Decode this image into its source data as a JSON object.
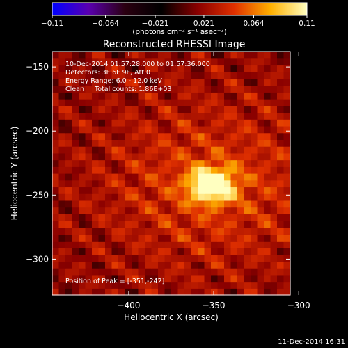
{
  "colorbar": {
    "ticks": [
      -0.11,
      -0.064,
      -0.021,
      0.021,
      0.064,
      0.11
    ],
    "tick_labels": [
      "−0.11",
      "−0.064",
      "−0.021",
      "0.021",
      "0.064",
      "0.11"
    ],
    "unit_label": "(photons cm⁻² s⁻¹ asec⁻²)",
    "range": [
      -0.11,
      0.11
    ],
    "colors": [
      "#0000ff",
      "#5a00b0",
      "#2a0010",
      "#000000",
      "#8a0000",
      "#e03000",
      "#ffb000",
      "#ffffc0"
    ]
  },
  "chart_data": {
    "type": "heatmap",
    "title": "Reconstructed RHESSI Image",
    "xlabel": "Heliocentric X (arcsec)",
    "ylabel": "Heliocentric Y (arcsec)",
    "xlim": [
      -445,
      -305
    ],
    "ylim": [
      -328,
      -138
    ],
    "x_ticks": [
      -400,
      -350,
      -300
    ],
    "x_tick_labels": [
      "−400",
      "−350",
      "−300"
    ],
    "y_ticks": [
      -150,
      -200,
      -250,
      -300
    ],
    "y_tick_labels": [
      "−150",
      "−200",
      "−250",
      "−300"
    ],
    "peak": {
      "x": -351,
      "y": -242,
      "value": 0.11
    },
    "annotations": [
      "10-Dec-2014 01:57:28.000 to 01:57:36.000",
      "Detectors: 3F 6F 9F, Att 0",
      "Energy Range: 6.0 - 12.0 keV",
      "Clean     Total counts: 1.86E+03"
    ],
    "peak_label": "Position of Peak = [-351,-242]"
  },
  "footer": {
    "timestamp": "11-Dec-2014 16:31"
  }
}
